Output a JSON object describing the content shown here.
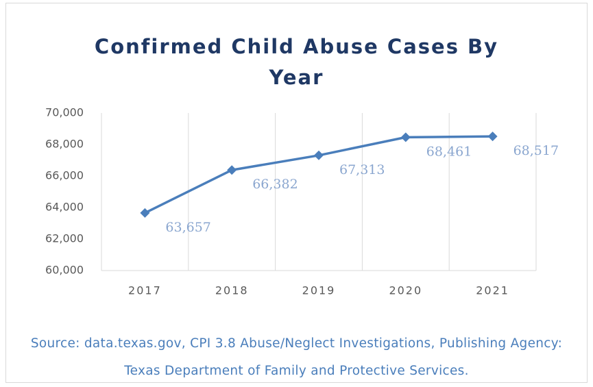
{
  "chart_data": {
    "type": "line",
    "title": "Confirmed Child Abuse Cases By Year",
    "categories": [
      "2017",
      "2018",
      "2019",
      "2020",
      "2021"
    ],
    "series": [
      {
        "name": "Confirmed Cases",
        "color": "#4a7ebb",
        "values": [
          63657,
          66382,
          67313,
          68461,
          68517
        ],
        "value_labels": [
          "63,657",
          "66,382",
          "67,313",
          "68,461",
          "68,517"
        ]
      }
    ],
    "ylim": [
      60000,
      70000
    ],
    "yticks": [
      {
        "value": 60000,
        "label": "60,000"
      },
      {
        "value": 62000,
        "label": "62,000"
      },
      {
        "value": 64000,
        "label": "64,000"
      },
      {
        "value": 66000,
        "label": "66,000"
      },
      {
        "value": 68000,
        "label": "68,000"
      },
      {
        "value": 70000,
        "label": "70,000"
      }
    ],
    "xgrid": true,
    "note": "Source: data.texas.gov, CPI 3.8 Abuse/Neglect Investigations, Publishing Agency:  Texas Department of Family and Protective Services."
  }
}
